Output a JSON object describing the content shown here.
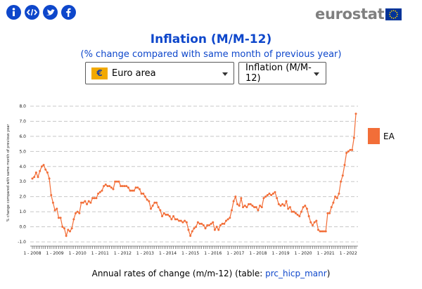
{
  "share": {
    "icons": [
      "info-icon",
      "embed-code-icon",
      "twitter-icon",
      "facebook-icon"
    ],
    "color": "#0e47cb"
  },
  "logo": {
    "text": "eurostat",
    "text_color": "#7f7f7f",
    "flag_color": "#003399"
  },
  "selectors": {
    "geo": {
      "value": "Euro area",
      "flag": "€"
    },
    "indicator": {
      "value": "Inflation (M/M-12)"
    }
  },
  "footer": {
    "text": "Annual rates of change (m/m-12) (table: ",
    "link": "prc_hicp_manr",
    "close": ")"
  },
  "chart_data": {
    "type": "line",
    "title": "Inflation (M/M-12)",
    "subtitle": "(% change compared with same month of previous year)",
    "ylabel": "% change compared with same month of previous year",
    "xlabel": "",
    "ylim": [
      -1.0,
      8.0
    ],
    "yticks": [
      "8.0",
      "7.0",
      "6.0",
      "5.0",
      "4.0",
      "3.0",
      "2.0",
      "1.0",
      "0.0",
      "-1.0"
    ],
    "xticks": [
      "1 - 2008",
      "1 - 2009",
      "1 - 2010",
      "1 - 2011",
      "1 - 2012",
      "1 - 2013",
      "1 - 2014",
      "1 - 2015",
      "1 - 2016",
      "1 - 2017",
      "1 - 2018",
      "1 - 2019",
      "1 - 2020",
      "1 - 2021",
      "1 - 2022"
    ],
    "start": "1 - 2008",
    "grid": true,
    "legend": {
      "position": "right",
      "entries": [
        "EA"
      ]
    },
    "series": [
      {
        "name": "EA",
        "color": "#f26e38",
        "values": [
          3.2,
          3.3,
          3.6,
          3.3,
          3.7,
          4.0,
          4.1,
          3.8,
          3.6,
          3.2,
          2.1,
          1.6,
          1.1,
          1.2,
          0.6,
          0.6,
          0.0,
          -0.1,
          -0.6,
          -0.2,
          -0.3,
          -0.1,
          0.5,
          0.9,
          1.0,
          0.9,
          1.6,
          1.6,
          1.7,
          1.5,
          1.7,
          1.6,
          1.9,
          1.9,
          1.9,
          2.2,
          2.3,
          2.4,
          2.7,
          2.8,
          2.7,
          2.7,
          2.6,
          2.5,
          3.0,
          3.0,
          3.0,
          2.7,
          2.7,
          2.7,
          2.7,
          2.6,
          2.4,
          2.4,
          2.4,
          2.6,
          2.6,
          2.5,
          2.2,
          2.2,
          2.0,
          1.8,
          1.7,
          1.2,
          1.4,
          1.6,
          1.6,
          1.3,
          1.1,
          0.7,
          0.9,
          0.8,
          0.8,
          0.7,
          0.5,
          0.7,
          0.5,
          0.5,
          0.4,
          0.4,
          0.3,
          0.4,
          0.3,
          -0.2,
          -0.6,
          -0.3,
          -0.1,
          0.0,
          0.3,
          0.2,
          0.2,
          0.1,
          -0.1,
          0.1,
          0.1,
          0.2,
          0.3,
          -0.2,
          0.0,
          -0.2,
          0.1,
          0.2,
          0.2,
          0.4,
          0.5,
          0.6,
          1.1,
          1.7,
          2.0,
          1.5,
          1.4,
          1.9,
          1.3,
          1.4,
          1.3,
          1.5,
          1.5,
          1.4,
          1.3,
          1.3,
          1.1,
          1.4,
          1.3,
          1.9,
          2.0,
          2.1,
          2.2,
          2.1,
          2.2,
          2.3,
          1.9,
          1.5,
          1.4,
          1.5,
          1.4,
          1.7,
          1.2,
          1.3,
          1.0,
          1.0,
          0.9,
          0.8,
          0.7,
          1.0,
          1.3,
          1.4,
          1.2,
          0.7,
          0.3,
          0.1,
          0.3,
          0.4,
          -0.2,
          -0.3,
          -0.3,
          -0.3,
          -0.3,
          0.9,
          0.9,
          1.3,
          1.6,
          2.0,
          1.9,
          2.2,
          3.0,
          3.4,
          4.1,
          4.9,
          5.0,
          5.1,
          5.1,
          5.9,
          7.5
        ]
      }
    ]
  }
}
